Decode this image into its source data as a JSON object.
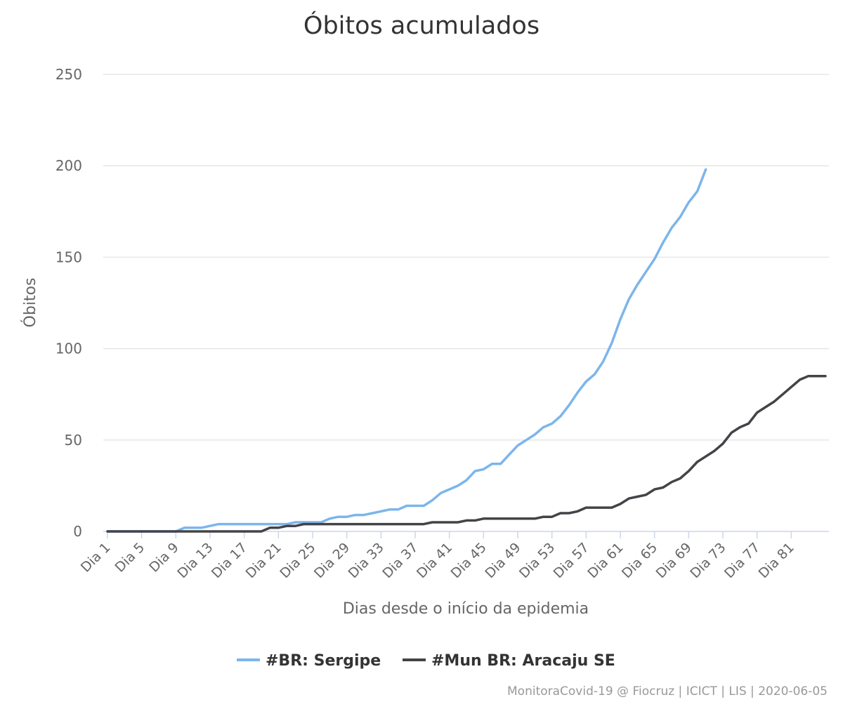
{
  "chart_data": {
    "type": "line",
    "title": "Óbitos acumulados",
    "xlabel": "Dias desde o início da epidemia",
    "ylabel": "Óbitos",
    "ylim": [
      0,
      250
    ],
    "yticks": [
      0,
      50,
      100,
      150,
      200,
      250
    ],
    "x_tick_labels": [
      "Dia 1",
      "Dia 5",
      "Dia 9",
      "Dia 13",
      "Dia 17",
      "Dia 21",
      "Dia 25",
      "Dia 29",
      "Dia 33",
      "Dia 37",
      "Dia 41",
      "Dia 45",
      "Dia 49",
      "Dia 53",
      "Dia 57",
      "Dia 61",
      "Dia 65",
      "Dia 69",
      "Dia 73",
      "Dia 77",
      "Dia 81"
    ],
    "x_range": [
      1,
      85
    ],
    "grid": true,
    "legend_position": "bottom-center",
    "series": [
      {
        "name": "#BR: Sergipe",
        "color": "#7cb5ec",
        "x": [
          1,
          2,
          3,
          4,
          5,
          6,
          7,
          8,
          9,
          10,
          11,
          12,
          13,
          14,
          15,
          16,
          17,
          18,
          19,
          20,
          21,
          22,
          23,
          24,
          25,
          26,
          27,
          28,
          29,
          30,
          31,
          32,
          33,
          34,
          35,
          36,
          37,
          38,
          39,
          40,
          41,
          42,
          43,
          44,
          45,
          46,
          47,
          48,
          49,
          50,
          51,
          52,
          53,
          54,
          55,
          56,
          57,
          58,
          59,
          60,
          61,
          62,
          63,
          64,
          65,
          66,
          67,
          68,
          69,
          70,
          71
        ],
        "values": [
          0,
          0,
          0,
          0,
          0,
          0,
          0,
          0,
          0,
          2,
          2,
          2,
          3,
          4,
          4,
          4,
          4,
          4,
          4,
          4,
          4,
          4,
          5,
          5,
          5,
          5,
          7,
          8,
          8,
          9,
          9,
          10,
          11,
          12,
          12,
          14,
          14,
          14,
          17,
          21,
          23,
          25,
          28,
          33,
          34,
          37,
          37,
          42,
          47,
          50,
          53,
          57,
          59,
          63,
          69,
          76,
          82,
          86,
          93,
          103,
          116,
          127,
          135,
          142,
          149,
          158,
          166,
          172,
          180,
          186,
          198
        ]
      },
      {
        "name": "#Mun BR: Aracaju SE",
        "color": "#434348",
        "x": [
          1,
          2,
          3,
          4,
          5,
          6,
          7,
          8,
          9,
          10,
          11,
          12,
          13,
          14,
          15,
          16,
          17,
          18,
          19,
          20,
          21,
          22,
          23,
          24,
          25,
          26,
          27,
          28,
          29,
          30,
          31,
          32,
          33,
          34,
          35,
          36,
          37,
          38,
          39,
          40,
          41,
          42,
          43,
          44,
          45,
          46,
          47,
          48,
          49,
          50,
          51,
          52,
          53,
          54,
          55,
          56,
          57,
          58,
          59,
          60,
          61,
          62,
          63,
          64,
          65,
          66,
          67,
          68,
          69,
          70,
          71,
          72,
          73,
          74,
          75,
          76,
          77,
          78,
          79,
          80,
          81,
          82,
          83,
          84,
          85
        ],
        "values": [
          0,
          0,
          0,
          0,
          0,
          0,
          0,
          0,
          0,
          0,
          0,
          0,
          0,
          0,
          0,
          0,
          0,
          0,
          0,
          2,
          2,
          3,
          3,
          4,
          4,
          4,
          4,
          4,
          4,
          4,
          4,
          4,
          4,
          4,
          4,
          4,
          4,
          4,
          5,
          5,
          5,
          5,
          6,
          6,
          7,
          7,
          7,
          7,
          7,
          7,
          7,
          8,
          8,
          10,
          10,
          11,
          13,
          13,
          13,
          13,
          15,
          18,
          19,
          20,
          23,
          24,
          27,
          29,
          33,
          38,
          41,
          44,
          48,
          54,
          57,
          59,
          65,
          68,
          71,
          75,
          79,
          83,
          85,
          85,
          85
        ]
      }
    ]
  },
  "credits": "MonitoraCovid-19 @ Fiocruz | ICICT | LIS | 2020-06-05"
}
